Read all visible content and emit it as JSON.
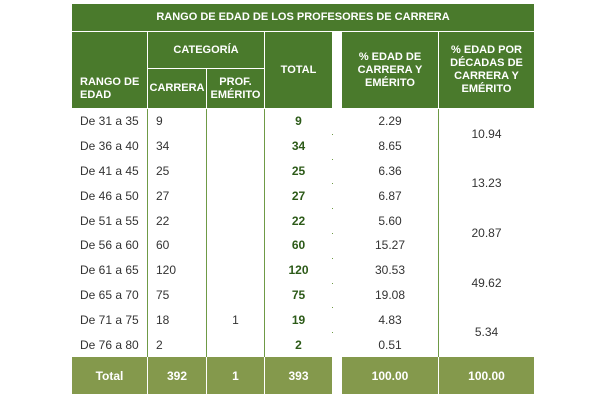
{
  "title": "RANGO DE EDAD DE LOS PROFESORES DE CARRERA",
  "headers": {
    "categoria": "CATEGORÍA",
    "rango": "RANGO DE EDAD",
    "carrera": "CARRERA",
    "emerito": "PROF. EMÉRITO",
    "total": "TOTAL",
    "pct": "% EDAD DE CARRERA Y EMÉRITO",
    "pct_decadas": "% EDAD POR DÉCADAS DE CARRERA Y EMÉRITO"
  },
  "rows": [
    {
      "rango": "De 31 a 35",
      "carrera": "9",
      "emerito": "",
      "total": "9",
      "pct": "2.29"
    },
    {
      "rango": "De 36 a 40",
      "carrera": "34",
      "emerito": "",
      "total": "34",
      "pct": "8.65"
    },
    {
      "rango": "De 41 a 45",
      "carrera": "25",
      "emerito": "",
      "total": "25",
      "pct": "6.36"
    },
    {
      "rango": "De 46 a 50",
      "carrera": "27",
      "emerito": "",
      "total": "27",
      "pct": "6.87"
    },
    {
      "rango": "De 51 a 55",
      "carrera": "22",
      "emerito": "",
      "total": "22",
      "pct": "5.60"
    },
    {
      "rango": "De 56 a 60",
      "carrera": "60",
      "emerito": "",
      "total": "60",
      "pct": "15.27"
    },
    {
      "rango": "De 61 a 65",
      "carrera": "120",
      "emerito": "",
      "total": "120",
      "pct": "30.53"
    },
    {
      "rango": "De 65 a 70",
      "carrera": "75",
      "emerito": "",
      "total": "75",
      "pct": "19.08"
    },
    {
      "rango": "De 71 a 75",
      "carrera": "18",
      "emerito": "1",
      "total": "19",
      "pct": "4.83"
    },
    {
      "rango": "De 76 a 80",
      "carrera": "2",
      "emerito": "",
      "total": "2",
      "pct": "0.51"
    }
  ],
  "decades": [
    "10.94",
    "13.23",
    "20.87",
    "49.62",
    "5.34"
  ],
  "footer": {
    "label": "Total",
    "carrera": "392",
    "emerito": "1",
    "total": "393",
    "pct": "100.00",
    "pct_decadas": "100.00"
  },
  "colors": {
    "header": "#4a7a2c",
    "footer": "#84994c",
    "total_text": "#2c5a18"
  }
}
